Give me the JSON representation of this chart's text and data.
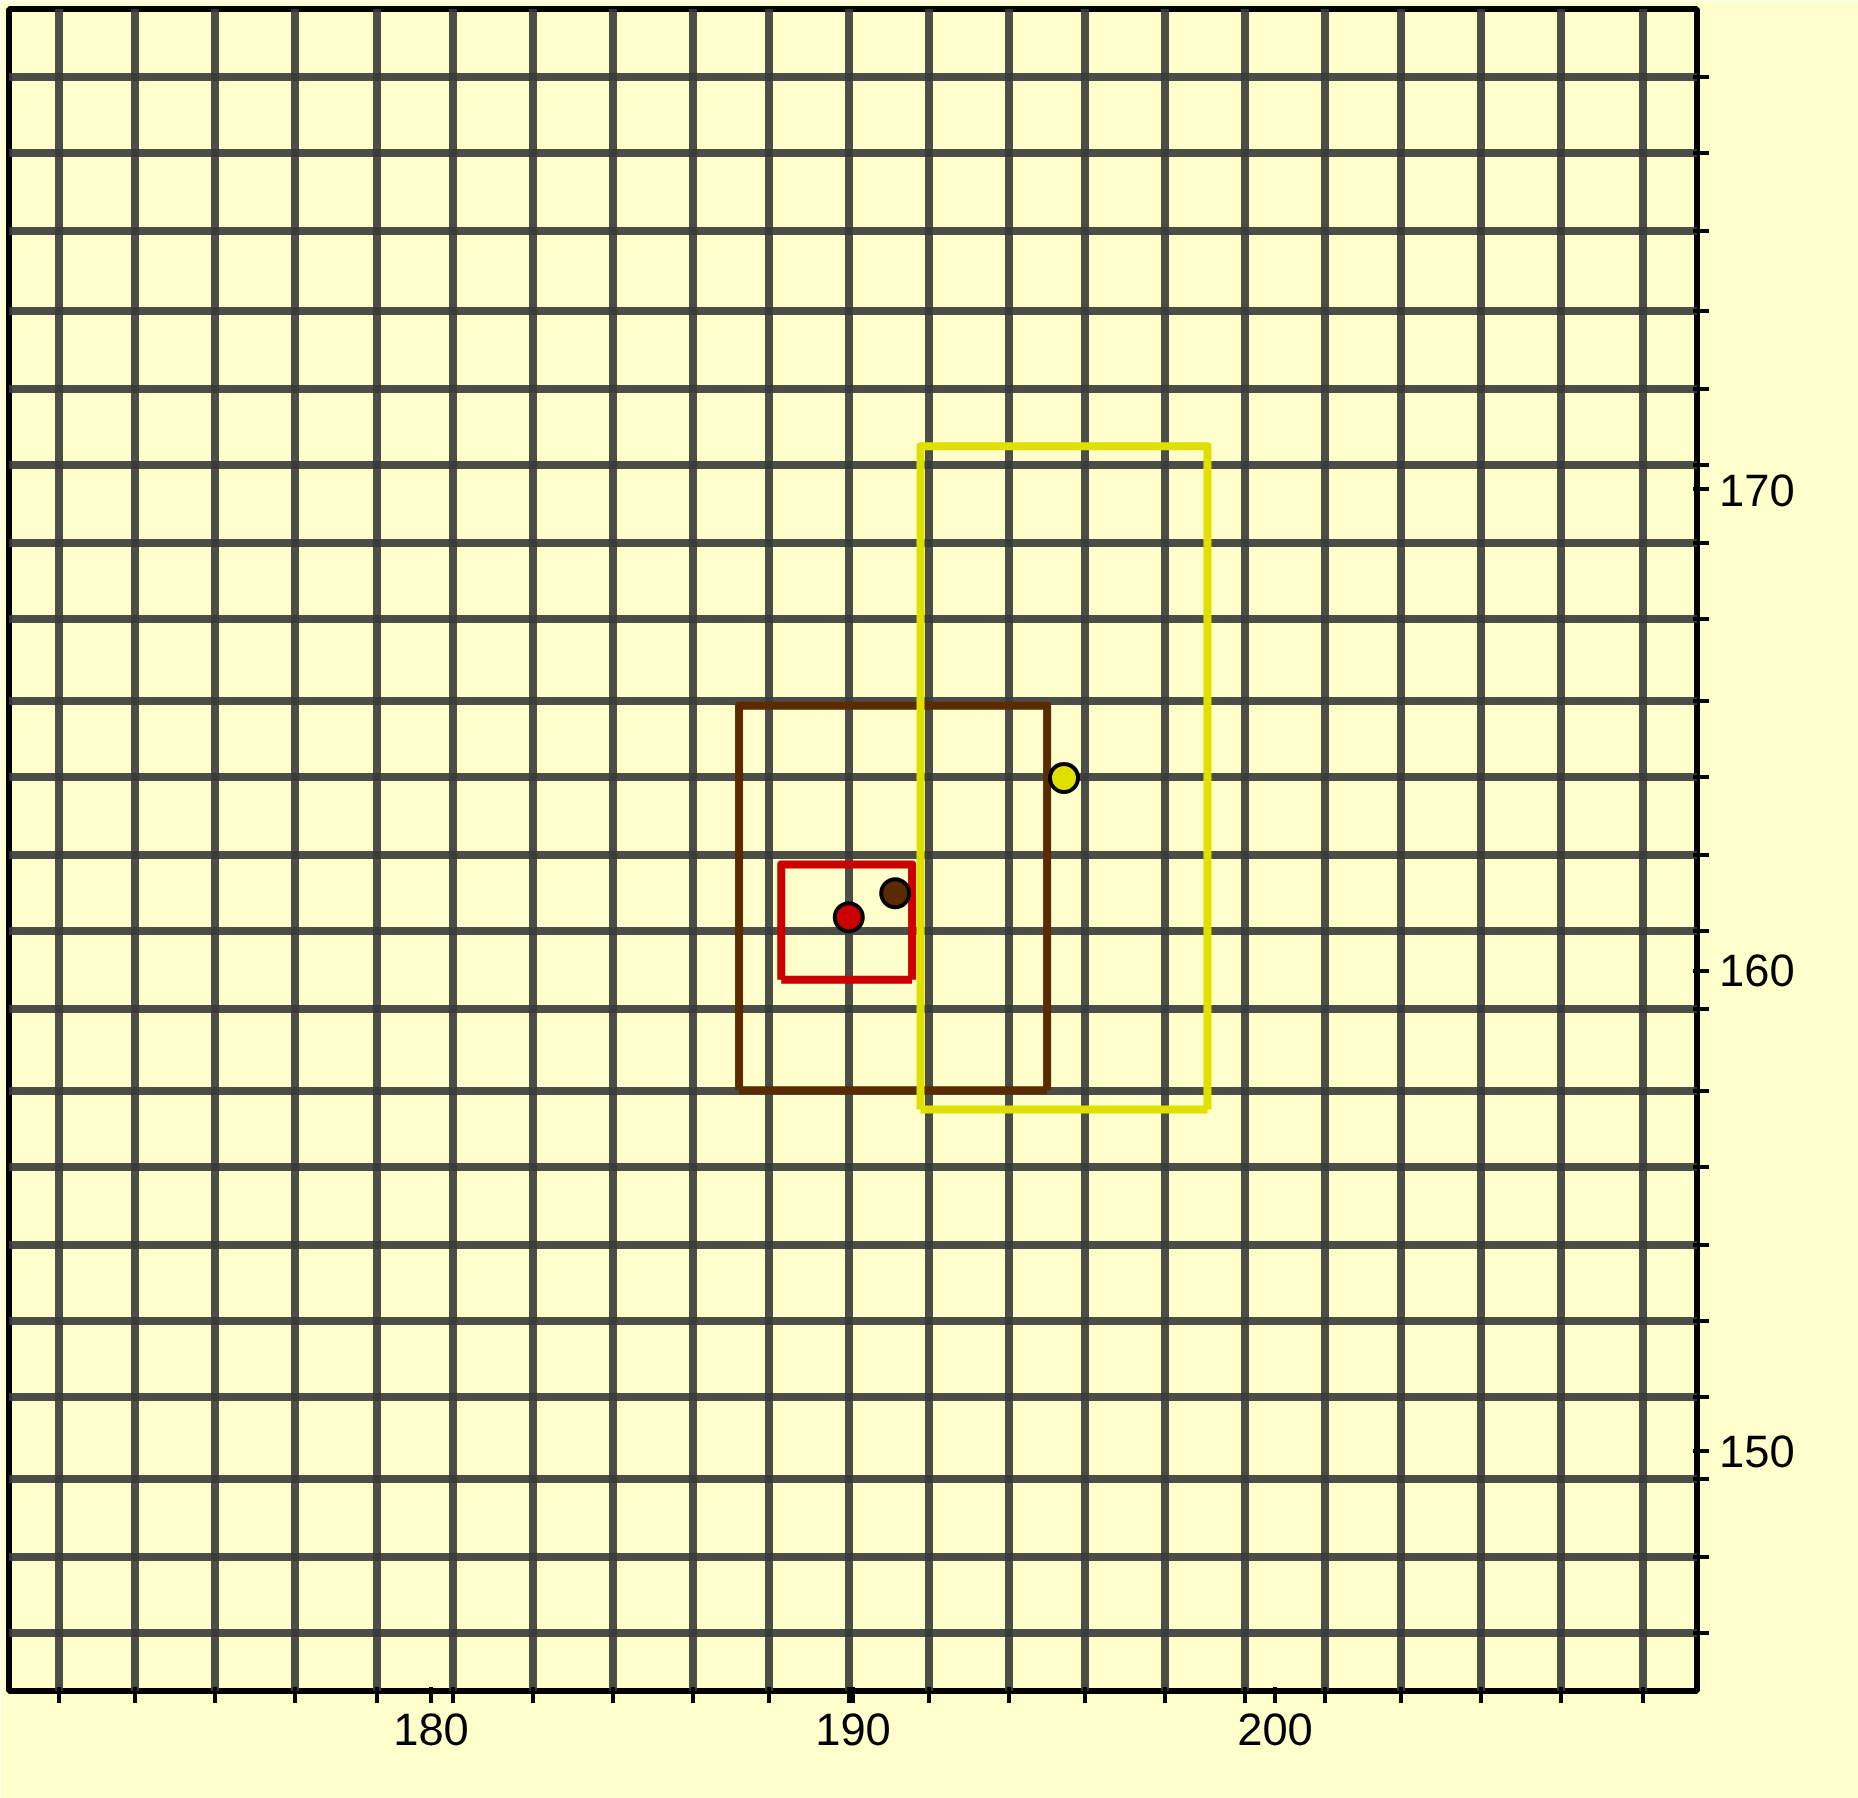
{
  "chart_data": {
    "type": "scatter",
    "marker": "circle",
    "grid": true,
    "legend": false,
    "xlim": [
      170,
      210
    ],
    "ylim": [
      145,
      180
    ],
    "xticks": [
      {
        "value": 171.2,
        "label": null
      },
      {
        "value": 173.0,
        "label": null
      },
      {
        "value": 174.9,
        "label": null
      },
      {
        "value": 176.8,
        "label": null
      },
      {
        "value": 178.7,
        "label": null
      },
      180,
      {
        "value": 180.5,
        "label": null
      },
      {
        "value": 182.4,
        "label": null
      },
      {
        "value": 184.3,
        "label": null
      },
      {
        "value": 186.2,
        "label": null
      },
      {
        "value": 188.0,
        "label": null
      },
      {
        "value": 189.9,
        "label": null
      },
      190,
      {
        "value": 191.8,
        "label": null
      },
      {
        "value": 193.7,
        "label": null
      },
      {
        "value": 195.5,
        "label": null
      },
      {
        "value": 197.4,
        "label": null
      },
      {
        "value": 199.3,
        "label": null
      },
      200,
      {
        "value": 201.2,
        "label": null
      },
      {
        "value": 203.0,
        "label": null
      },
      {
        "value": 204.9,
        "label": null
      },
      {
        "value": 206.8,
        "label": null
      },
      {
        "value": 208.7,
        "label": null
      }
    ],
    "yticks": [
      {
        "value": 146.2,
        "label": null
      },
      {
        "value": 147.8,
        "label": null
      },
      {
        "value": 149.4,
        "label": null
      },
      150,
      {
        "value": 151.1,
        "label": null
      },
      {
        "value": 152.7,
        "label": null
      },
      {
        "value": 154.3,
        "label": null
      },
      {
        "value": 155.9,
        "label": null
      },
      {
        "value": 157.5,
        "label": null
      },
      {
        "value": 159.2,
        "label": null
      },
      160,
      {
        "value": 160.8,
        "label": null
      },
      {
        "value": 162.4,
        "label": null
      },
      {
        "value": 164.0,
        "label": null
      },
      {
        "value": 165.6,
        "label": null
      },
      {
        "value": 167.3,
        "label": null
      },
      {
        "value": 168.9,
        "label": null
      },
      170,
      {
        "value": 170.5,
        "label": null
      },
      {
        "value": 172.1,
        "label": null
      },
      {
        "value": 173.7,
        "label": null
      },
      {
        "value": 175.4,
        "label": null
      },
      {
        "value": 177.0,
        "label": null
      },
      {
        "value": 178.6,
        "label": null
      }
    ],
    "series": [
      {
        "type": "line",
        "marker": "none",
        "color": "#5a2a00",
        "x": [
          187.3,
          187.3,
          194.6,
          194.6
        ],
        "values": [
          157.5,
          165.5,
          165.5,
          157.5
        ]
      },
      {
        "type": "line",
        "marker": "none",
        "color": "#5a2a00",
        "x": [
          187.3,
          194.6
        ],
        "values": [
          157.5,
          157.5
        ]
      },
      {
        "type": "line",
        "marker": "none",
        "color": "#e0e000",
        "x": [
          191.6,
          191.6,
          198.4,
          198.4
        ],
        "values": [
          157.1,
          170.9,
          170.9,
          157.1
        ]
      },
      {
        "type": "line",
        "marker": "none",
        "color": "#e0e000",
        "x": [
          191.6,
          198.4
        ],
        "values": [
          157.1,
          157.1
        ]
      },
      {
        "type": "line",
        "marker": "none",
        "color": "#cc0000",
        "x": [
          188.3,
          188.3,
          191.4,
          191.4
        ],
        "values": [
          159.8,
          162.2,
          162.2,
          159.8
        ]
      },
      {
        "type": "line",
        "marker": "none",
        "color": "#cc0000",
        "x": [
          188.3,
          191.4
        ],
        "values": [
          159.8,
          159.8
        ]
      },
      {
        "color": "#5a2a00",
        "x": [
          191.0
        ],
        "values": [
          161.6
        ]
      },
      {
        "color": "#e0e000",
        "x": [
          195.0
        ],
        "values": [
          164.0
        ]
      },
      {
        "color": "#cc0000",
        "x": [
          189.9
        ],
        "values": [
          161.1
        ]
      }
    ]
  }
}
